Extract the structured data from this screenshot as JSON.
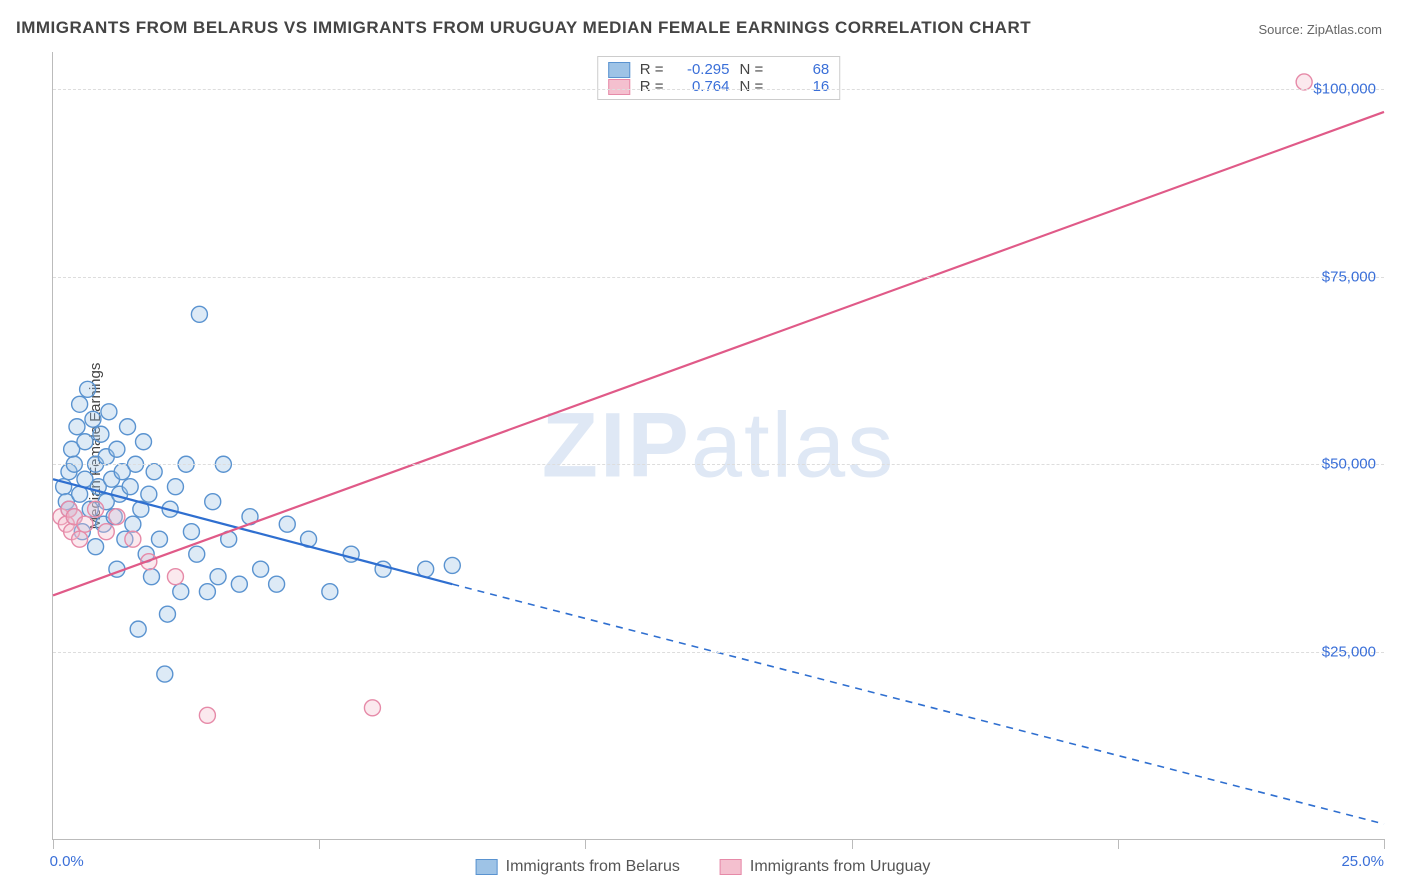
{
  "title": "IMMIGRANTS FROM BELARUS VS IMMIGRANTS FROM URUGUAY MEDIAN FEMALE EARNINGS CORRELATION CHART",
  "source_label": "Source: ",
  "source_value": "ZipAtlas.com",
  "ylabel": "Median Female Earnings",
  "watermark_a": "ZIP",
  "watermark_b": "atlas",
  "chart": {
    "type": "scatter-with-regression",
    "xlim": [
      0,
      25
    ],
    "ylim": [
      0,
      105000
    ],
    "x_ticks": [
      0,
      5,
      10,
      15,
      20,
      25
    ],
    "x_tick_labels_shown": {
      "0": "0.0%",
      "25": "25.0%"
    },
    "y_gridlines": [
      25000,
      50000,
      75000,
      100000
    ],
    "y_tick_labels": {
      "25000": "$25,000",
      "50000": "$50,000",
      "75000": "$75,000",
      "100000": "$100,000"
    },
    "background_color": "#ffffff",
    "grid_color": "#dddddd",
    "axis_color": "#bbbbbb",
    "tick_label_color": "#3a6fd8",
    "marker_radius": 8,
    "marker_fill_opacity": 0.35,
    "marker_stroke_width": 1.4,
    "line_width": 2.2,
    "series": [
      {
        "name": "Immigrants from Belarus",
        "color_fill": "#9ec3e6",
        "color_stroke": "#5a93d0",
        "line_color": "#2f6fd0",
        "R": "-0.295",
        "N": "68",
        "regression": {
          "x1": 0,
          "y1": 48000,
          "x2": 7.5,
          "y2": 34000,
          "dash_x2": 25,
          "dash_y2": 2000
        },
        "points": [
          [
            0.2,
            47000
          ],
          [
            0.25,
            45000
          ],
          [
            0.3,
            49000
          ],
          [
            0.3,
            44000
          ],
          [
            0.35,
            52000
          ],
          [
            0.4,
            43000
          ],
          [
            0.4,
            50000
          ],
          [
            0.45,
            55000
          ],
          [
            0.5,
            46000
          ],
          [
            0.5,
            58000
          ],
          [
            0.55,
            41000
          ],
          [
            0.6,
            48000
          ],
          [
            0.6,
            53000
          ],
          [
            0.65,
            60000
          ],
          [
            0.7,
            44000
          ],
          [
            0.75,
            56000
          ],
          [
            0.8,
            50000
          ],
          [
            0.8,
            39000
          ],
          [
            0.85,
            47000
          ],
          [
            0.9,
            54000
          ],
          [
            0.95,
            42000
          ],
          [
            1.0,
            51000
          ],
          [
            1.0,
            45000
          ],
          [
            1.05,
            57000
          ],
          [
            1.1,
            48000
          ],
          [
            1.15,
            43000
          ],
          [
            1.2,
            36000
          ],
          [
            1.2,
            52000
          ],
          [
            1.25,
            46000
          ],
          [
            1.3,
            49000
          ],
          [
            1.35,
            40000
          ],
          [
            1.4,
            55000
          ],
          [
            1.45,
            47000
          ],
          [
            1.5,
            42000
          ],
          [
            1.55,
            50000
          ],
          [
            1.6,
            28000
          ],
          [
            1.65,
            44000
          ],
          [
            1.7,
            53000
          ],
          [
            1.75,
            38000
          ],
          [
            1.8,
            46000
          ],
          [
            1.85,
            35000
          ],
          [
            1.9,
            49000
          ],
          [
            2.0,
            40000
          ],
          [
            2.1,
            22000
          ],
          [
            2.15,
            30000
          ],
          [
            2.2,
            44000
          ],
          [
            2.3,
            47000
          ],
          [
            2.4,
            33000
          ],
          [
            2.5,
            50000
          ],
          [
            2.6,
            41000
          ],
          [
            2.7,
            38000
          ],
          [
            2.75,
            70000
          ],
          [
            2.9,
            33000
          ],
          [
            3.0,
            45000
          ],
          [
            3.1,
            35000
          ],
          [
            3.2,
            50000
          ],
          [
            3.3,
            40000
          ],
          [
            3.5,
            34000
          ],
          [
            3.7,
            43000
          ],
          [
            3.9,
            36000
          ],
          [
            4.2,
            34000
          ],
          [
            4.4,
            42000
          ],
          [
            4.8,
            40000
          ],
          [
            5.2,
            33000
          ],
          [
            5.6,
            38000
          ],
          [
            6.2,
            36000
          ],
          [
            7.0,
            36000
          ],
          [
            7.5,
            36500
          ]
        ]
      },
      {
        "name": "Immigrants from Uruguay",
        "color_fill": "#f4c0cf",
        "color_stroke": "#e68aa8",
        "line_color": "#e05a88",
        "R": "0.764",
        "N": "16",
        "regression": {
          "x1": 0,
          "y1": 32500,
          "x2": 25,
          "y2": 97000
        },
        "points": [
          [
            0.15,
            43000
          ],
          [
            0.25,
            42000
          ],
          [
            0.3,
            44000
          ],
          [
            0.35,
            41000
          ],
          [
            0.4,
            43000
          ],
          [
            0.5,
            40000
          ],
          [
            0.6,
            42000
          ],
          [
            0.8,
            44000
          ],
          [
            1.0,
            41000
          ],
          [
            1.2,
            43000
          ],
          [
            1.5,
            40000
          ],
          [
            1.8,
            37000
          ],
          [
            2.3,
            35000
          ],
          [
            2.9,
            16500
          ],
          [
            6.0,
            17500
          ],
          [
            23.5,
            101000
          ]
        ]
      }
    ]
  },
  "legend_top": {
    "r_label": "R =",
    "n_label": "N ="
  },
  "legend_bottom": {
    "series1": "Immigrants from Belarus",
    "series2": "Immigrants from Uruguay"
  }
}
